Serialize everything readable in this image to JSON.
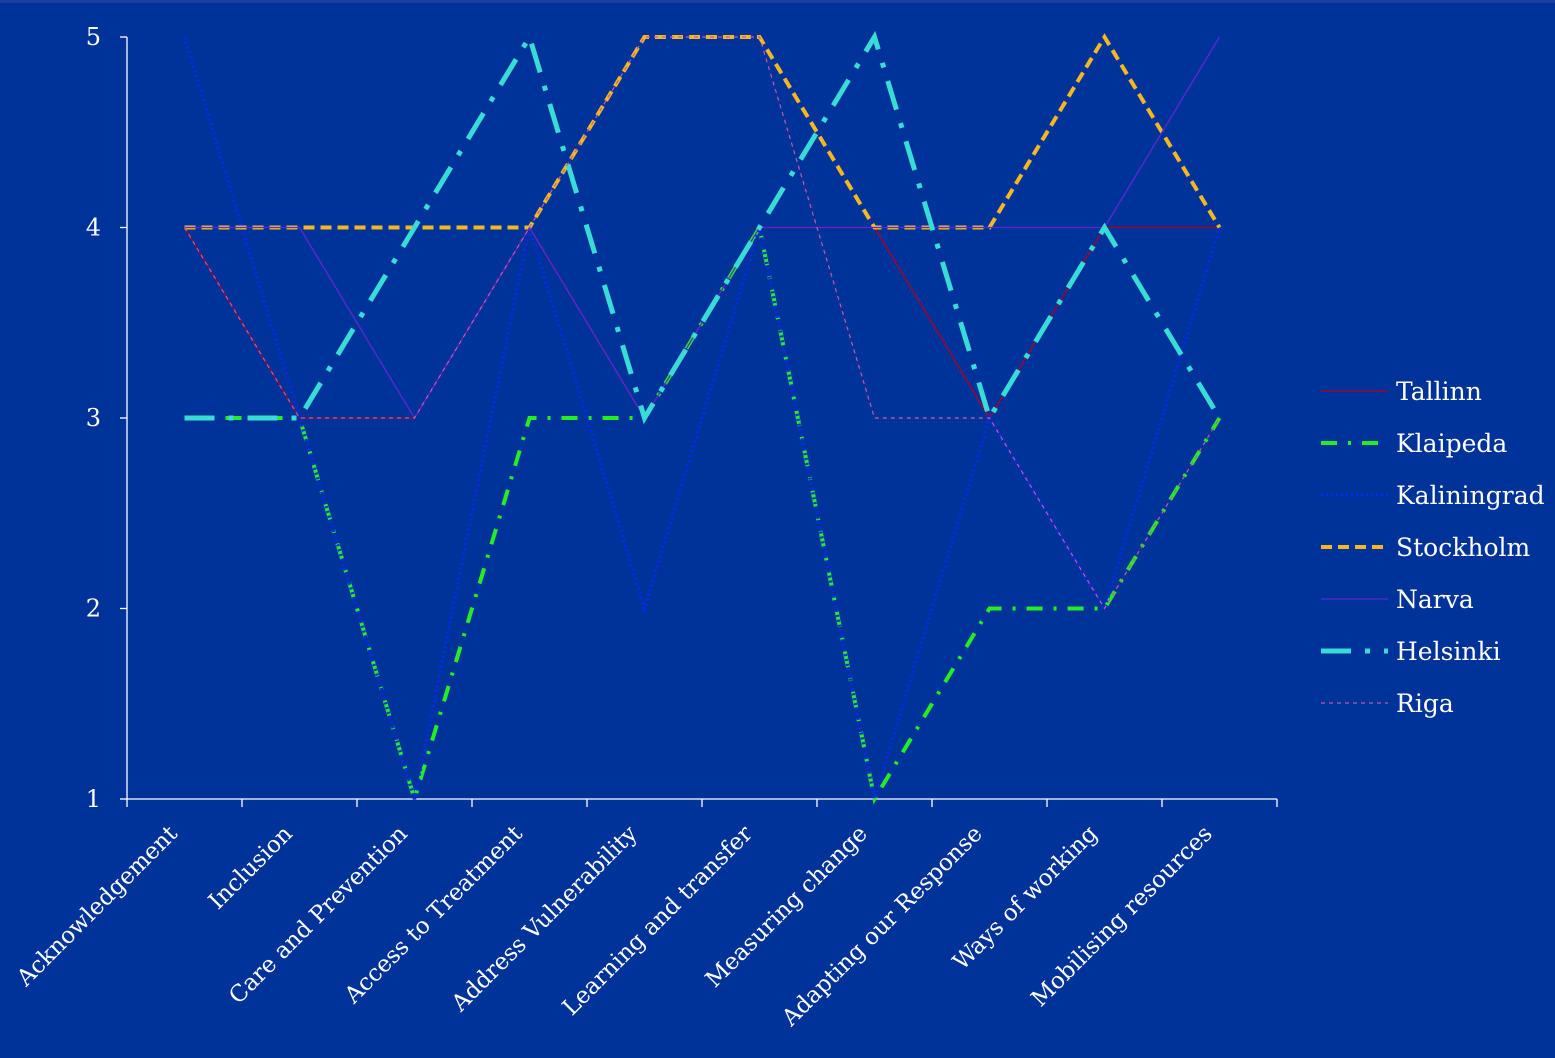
{
  "chart_data": {
    "type": "line",
    "categories": [
      "Acknowledgement",
      "Inclusion",
      "Care and Prevention",
      "Access to Treatment",
      "Address Vulnerability",
      "Learning and transfer",
      "Measuring change",
      "Adapting our Response",
      "Ways of working",
      "Mobilising resources"
    ],
    "ylim": [
      1,
      5
    ],
    "yticks": [
      "1",
      "2",
      "3",
      "4",
      "5"
    ],
    "legend_position": "right",
    "grid": false,
    "series": [
      {
        "name": "Tallinn",
        "color": "#b0001e",
        "dash": "solid",
        "values": [
          4,
          3,
          3,
          4,
          3,
          4,
          4,
          3,
          4,
          4
        ]
      },
      {
        "name": "Klaipeda",
        "color": "#22ee22",
        "dash": "dashdot",
        "values": [
          3,
          3,
          1,
          3,
          3,
          4,
          1,
          2,
          2,
          3
        ]
      },
      {
        "name": "Kaliningrad",
        "color": "#0a28e6",
        "dash": "dotted",
        "values": [
          5,
          3,
          1,
          4,
          2,
          4,
          1,
          3,
          2,
          4
        ]
      },
      {
        "name": "Stockholm",
        "color": "#f5b820",
        "dash": "dashed",
        "values": [
          4,
          4,
          4,
          4,
          5,
          5,
          4,
          4,
          5,
          4
        ]
      },
      {
        "name": "Narva",
        "color": "#5a28d8",
        "dash": "solid",
        "values": [
          4,
          4,
          3,
          4,
          3,
          4,
          4,
          4,
          4,
          5
        ]
      },
      {
        "name": "Helsinki",
        "color": "#38dcd6",
        "dash": "longdashdot",
        "values": [
          3,
          3,
          4,
          5,
          3,
          4,
          5,
          3,
          4,
          3
        ]
      },
      {
        "name": "Riga",
        "color": "#c45aa8",
        "dash": "fine",
        "values": [
          4,
          3,
          3,
          4,
          5,
          5,
          3,
          3,
          2,
          3
        ]
      }
    ]
  }
}
